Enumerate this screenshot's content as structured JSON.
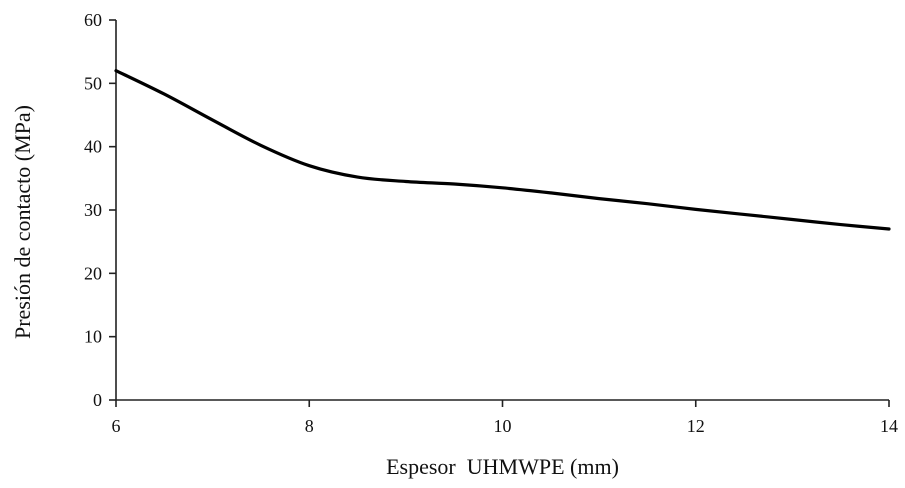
{
  "chart_data": {
    "type": "line",
    "title": "",
    "xlabel": "Espesor  UHMWPE (mm)",
    "ylabel": "Presión de contacto (MPa)",
    "xlim": [
      6,
      14
    ],
    "ylim": [
      0,
      60
    ],
    "xticks": [
      6,
      8,
      10,
      12,
      14
    ],
    "yticks": [
      0,
      10,
      20,
      30,
      40,
      50,
      60
    ],
    "grid": false,
    "legend": "none",
    "series": [
      {
        "color": "#000000",
        "x": [
          6,
          6.5,
          7,
          7.5,
          8,
          8.5,
          9,
          9.5,
          10,
          10.5,
          11,
          11.5,
          12,
          12.5,
          13,
          13.5,
          14
        ],
        "y": [
          52,
          48.3,
          44.2,
          40.2,
          37.0,
          35.2,
          34.5,
          34.1,
          33.5,
          32.7,
          31.8,
          31.0,
          30.1,
          29.3,
          28.5,
          27.7,
          27.0
        ]
      }
    ]
  }
}
